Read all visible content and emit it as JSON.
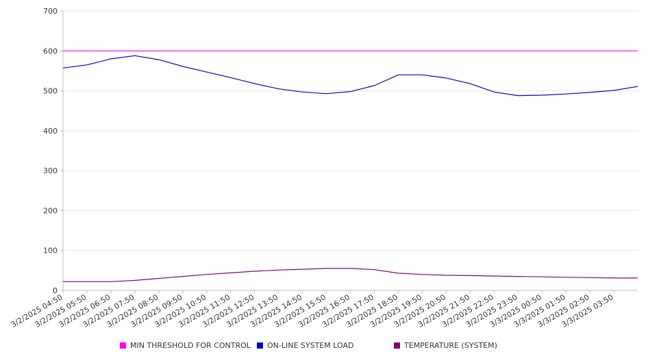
{
  "chart_data": {
    "type": "line",
    "ylim": [
      0,
      700
    ],
    "y_ticks": [
      0,
      100,
      200,
      300,
      400,
      500,
      600,
      700
    ],
    "x_start": "3/2/2025 04:50",
    "x_end": "3/3/2025 04:50",
    "x_tick_labels": [
      "3/2/2025 04:50",
      "3/2/2025 05:50",
      "3/2/2025 06:50",
      "3/2/2025 07:50",
      "3/2/2025 08:50",
      "3/2/2025 09:50",
      "3/2/2025 10:50",
      "3/2/2025 11:50",
      "3/2/2025 12:50",
      "3/2/2025 13:50",
      "3/2/2025 14:50",
      "3/2/2025 15:50",
      "3/2/2025 16:50",
      "3/2/2025 17:50",
      "3/2/2025 18:50",
      "3/2/2025 19:50",
      "3/2/2025 20:50",
      "3/2/2025 21:50",
      "3/2/2025 22:50",
      "3/2/2025 23:50",
      "3/3/2025 00:50",
      "3/3/2025 01:50",
      "3/3/2025 02:50",
      "3/3/2025 03:50"
    ],
    "grid": true,
    "legend_position": "bottom",
    "series": [
      {
        "name": "MIN THRESHOLD FOR CONTROL",
        "color": "#ff00ff",
        "points": [
          [
            "3/2/2025 04:50",
            600
          ],
          [
            "3/3/2025 04:50",
            600
          ]
        ]
      },
      {
        "name": "ON-LINE SYSTEM LOAD",
        "color": "#0000cc",
        "points": [
          [
            "3/2/2025 04:50",
            557
          ],
          [
            "3/2/2025 05:50",
            565
          ],
          [
            "3/2/2025 06:50",
            580
          ],
          [
            "3/2/2025 07:50",
            588
          ],
          [
            "3/2/2025 08:50",
            578
          ],
          [
            "3/2/2025 09:50",
            561
          ],
          [
            "3/2/2025 10:50",
            547
          ],
          [
            "3/2/2025 11:50",
            533
          ],
          [
            "3/2/2025 12:50",
            518
          ],
          [
            "3/2/2025 13:50",
            505
          ],
          [
            "3/2/2025 14:50",
            497
          ],
          [
            "3/2/2025 15:50",
            493
          ],
          [
            "3/2/2025 16:50",
            498
          ],
          [
            "3/2/2025 17:50",
            513
          ],
          [
            "3/2/2025 18:50",
            540
          ],
          [
            "3/2/2025 19:50",
            540
          ],
          [
            "3/2/2025 20:50",
            532
          ],
          [
            "3/2/2025 21:50",
            518
          ],
          [
            "3/2/2025 22:50",
            497
          ],
          [
            "3/2/2025 23:50",
            488
          ],
          [
            "3/3/2025 00:50",
            489
          ],
          [
            "3/3/2025 01:50",
            492
          ],
          [
            "3/3/2025 02:50",
            496
          ],
          [
            "3/3/2025 03:50",
            501
          ],
          [
            "3/3/2025 04:50",
            511
          ]
        ]
      },
      {
        "name": "TEMPERATURE (SYSTEM)",
        "color": "#800080",
        "points": [
          [
            "3/2/2025 04:50",
            22
          ],
          [
            "3/2/2025 05:50",
            22
          ],
          [
            "3/2/2025 06:50",
            22
          ],
          [
            "3/2/2025 07:50",
            25
          ],
          [
            "3/2/2025 08:50",
            30
          ],
          [
            "3/2/2025 09:50",
            35
          ],
          [
            "3/2/2025 10:50",
            40
          ],
          [
            "3/2/2025 11:50",
            44
          ],
          [
            "3/2/2025 12:50",
            48
          ],
          [
            "3/2/2025 13:50",
            51
          ],
          [
            "3/2/2025 14:50",
            53
          ],
          [
            "3/2/2025 15:50",
            55
          ],
          [
            "3/2/2025 16:50",
            55
          ],
          [
            "3/2/2025 17:50",
            52
          ],
          [
            "3/2/2025 18:50",
            43
          ],
          [
            "3/2/2025 19:50",
            40
          ],
          [
            "3/2/2025 20:50",
            38
          ],
          [
            "3/2/2025 21:50",
            37
          ],
          [
            "3/2/2025 22:50",
            36
          ],
          [
            "3/2/2025 23:50",
            35
          ],
          [
            "3/3/2025 00:50",
            34
          ],
          [
            "3/3/2025 01:50",
            33
          ],
          [
            "3/3/2025 02:50",
            32
          ],
          [
            "3/3/2025 03:50",
            31
          ],
          [
            "3/3/2025 04:50",
            31
          ]
        ]
      }
    ]
  }
}
